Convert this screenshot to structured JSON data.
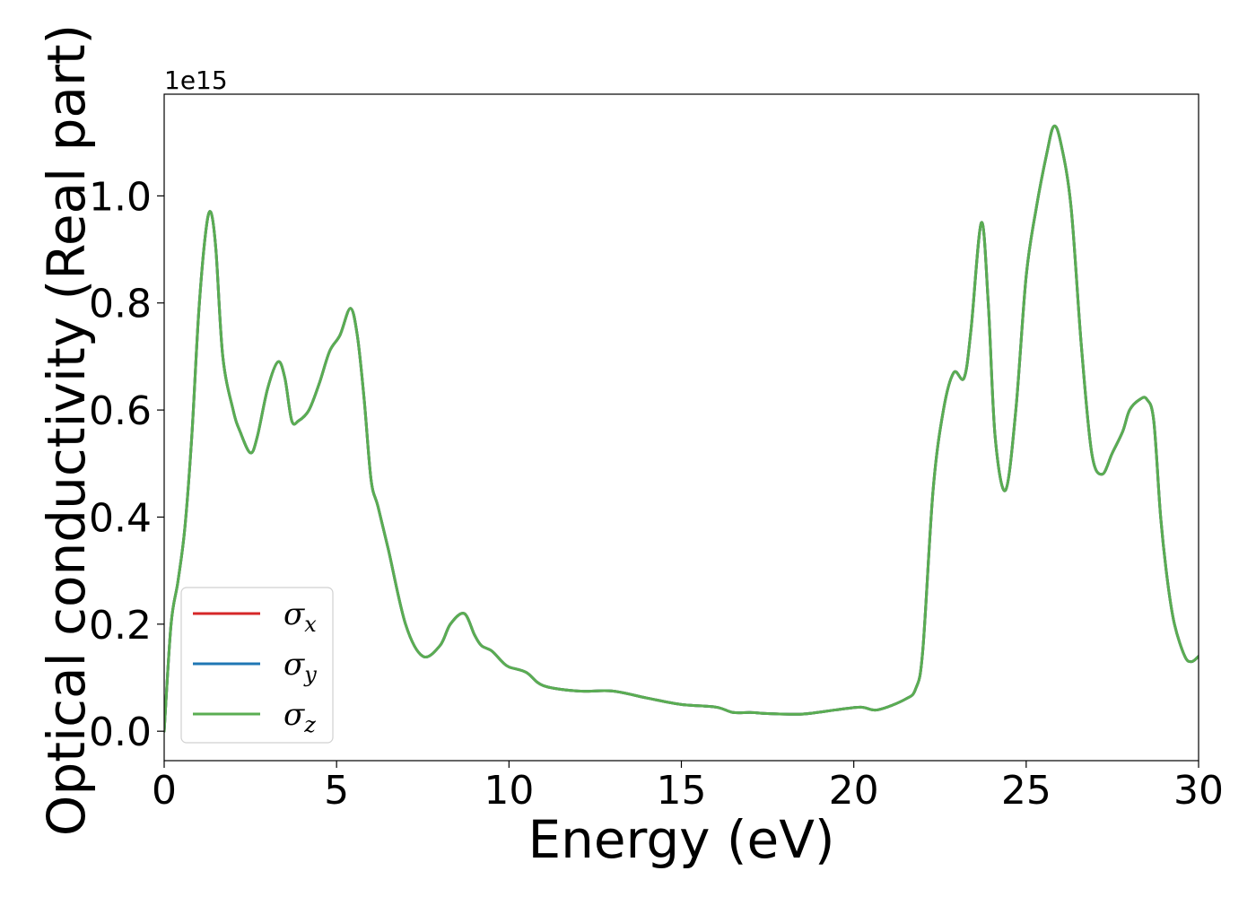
{
  "chart_data": {
    "type": "line",
    "xlabel": "Energy (eV)",
    "ylabel": "Optical conductivity (Real part)",
    "y_offset_text": "1e15",
    "xlim": [
      0,
      30
    ],
    "ylim": [
      -0.055,
      1.19
    ],
    "x_ticks": [
      0,
      5,
      10,
      15,
      20,
      25,
      30
    ],
    "x_tick_labels": [
      "0",
      "5",
      "10",
      "15",
      "20",
      "25",
      "30"
    ],
    "y_ticks": [
      0.0,
      0.2,
      0.4,
      0.6,
      0.8,
      1.0
    ],
    "y_tick_labels": [
      "0.0",
      "0.2",
      "0.4",
      "0.6",
      "0.8",
      "1.0"
    ],
    "grid": false,
    "legend_position": "lower-left",
    "x": [
      0,
      0.2,
      0.4,
      0.6,
      0.8,
      1.0,
      1.2,
      1.35,
      1.5,
      1.7,
      2.0,
      2.2,
      2.5,
      2.7,
      3.0,
      3.3,
      3.5,
      3.7,
      3.9,
      4.2,
      4.5,
      4.8,
      5.1,
      5.4,
      5.6,
      5.8,
      6.0,
      6.2,
      6.5,
      7.0,
      7.5,
      8.0,
      8.3,
      8.7,
      9.0,
      9.2,
      9.5,
      9.8,
      10.0,
      10.5,
      11.0,
      12.0,
      13.0,
      14.0,
      15.0,
      16.0,
      16.5,
      17.0,
      17.5,
      18.5,
      19.5,
      20.2,
      20.7,
      21.5,
      21.8,
      22.0,
      22.3,
      22.6,
      22.9,
      23.2,
      23.4,
      23.7,
      23.9,
      24.1,
      24.4,
      24.7,
      25.0,
      25.3,
      25.6,
      25.8,
      26.0,
      26.3,
      26.6,
      26.9,
      27.2,
      27.5,
      27.8,
      28.0,
      28.3,
      28.5,
      28.7,
      28.9,
      29.1,
      29.3,
      29.6,
      29.8,
      30.0
    ],
    "series": [
      {
        "name": "σx",
        "color": "#d62728",
        "y": [
          0.0,
          0.2,
          0.28,
          0.38,
          0.55,
          0.78,
          0.93,
          0.97,
          0.9,
          0.7,
          0.6,
          0.56,
          0.52,
          0.55,
          0.64,
          0.69,
          0.66,
          0.58,
          0.58,
          0.6,
          0.65,
          0.71,
          0.74,
          0.79,
          0.74,
          0.62,
          0.47,
          0.42,
          0.34,
          0.2,
          0.14,
          0.16,
          0.2,
          0.22,
          0.18,
          0.16,
          0.15,
          0.13,
          0.12,
          0.11,
          0.085,
          0.075,
          0.075,
          0.062,
          0.05,
          0.045,
          0.035,
          0.035,
          0.033,
          0.032,
          0.04,
          0.045,
          0.04,
          0.06,
          0.08,
          0.15,
          0.45,
          0.6,
          0.67,
          0.66,
          0.75,
          0.95,
          0.8,
          0.55,
          0.45,
          0.6,
          0.85,
          0.98,
          1.08,
          1.13,
          1.1,
          0.98,
          0.72,
          0.52,
          0.48,
          0.52,
          0.56,
          0.6,
          0.62,
          0.62,
          0.58,
          0.4,
          0.28,
          0.2,
          0.14,
          0.13,
          0.14
        ]
      },
      {
        "name": "σy",
        "color": "#1f77b4",
        "y": [
          0.0,
          0.2,
          0.28,
          0.38,
          0.55,
          0.78,
          0.93,
          0.97,
          0.9,
          0.7,
          0.6,
          0.56,
          0.52,
          0.55,
          0.64,
          0.69,
          0.66,
          0.58,
          0.58,
          0.6,
          0.65,
          0.71,
          0.74,
          0.79,
          0.74,
          0.62,
          0.47,
          0.42,
          0.34,
          0.2,
          0.14,
          0.16,
          0.2,
          0.22,
          0.18,
          0.16,
          0.15,
          0.13,
          0.12,
          0.11,
          0.085,
          0.075,
          0.075,
          0.062,
          0.05,
          0.045,
          0.035,
          0.035,
          0.033,
          0.032,
          0.04,
          0.045,
          0.04,
          0.06,
          0.08,
          0.15,
          0.45,
          0.6,
          0.67,
          0.66,
          0.75,
          0.95,
          0.8,
          0.55,
          0.45,
          0.6,
          0.85,
          0.98,
          1.08,
          1.13,
          1.1,
          0.98,
          0.72,
          0.52,
          0.48,
          0.52,
          0.56,
          0.6,
          0.62,
          0.62,
          0.58,
          0.4,
          0.28,
          0.2,
          0.14,
          0.13,
          0.14
        ]
      },
      {
        "name": "σz",
        "color": "#5aad52",
        "y": [
          0.0,
          0.2,
          0.28,
          0.38,
          0.55,
          0.78,
          0.93,
          0.97,
          0.9,
          0.7,
          0.6,
          0.56,
          0.52,
          0.55,
          0.64,
          0.69,
          0.66,
          0.58,
          0.58,
          0.6,
          0.65,
          0.71,
          0.74,
          0.79,
          0.74,
          0.62,
          0.47,
          0.42,
          0.34,
          0.2,
          0.14,
          0.16,
          0.2,
          0.22,
          0.18,
          0.16,
          0.15,
          0.13,
          0.12,
          0.11,
          0.085,
          0.075,
          0.075,
          0.062,
          0.05,
          0.045,
          0.035,
          0.035,
          0.033,
          0.032,
          0.04,
          0.045,
          0.04,
          0.06,
          0.08,
          0.15,
          0.45,
          0.6,
          0.67,
          0.66,
          0.75,
          0.95,
          0.8,
          0.55,
          0.45,
          0.6,
          0.85,
          0.98,
          1.08,
          1.13,
          1.1,
          0.98,
          0.72,
          0.52,
          0.48,
          0.52,
          0.56,
          0.6,
          0.62,
          0.62,
          0.58,
          0.4,
          0.28,
          0.2,
          0.14,
          0.13,
          0.14
        ]
      }
    ],
    "legend": [
      {
        "label": "σx",
        "base": "σ",
        "sub": "x",
        "color": "#d62728"
      },
      {
        "label": "σy",
        "base": "σ",
        "sub": "y",
        "color": "#1f77b4"
      },
      {
        "label": "σz",
        "base": "σ",
        "sub": "z",
        "color": "#5aad52"
      }
    ]
  }
}
